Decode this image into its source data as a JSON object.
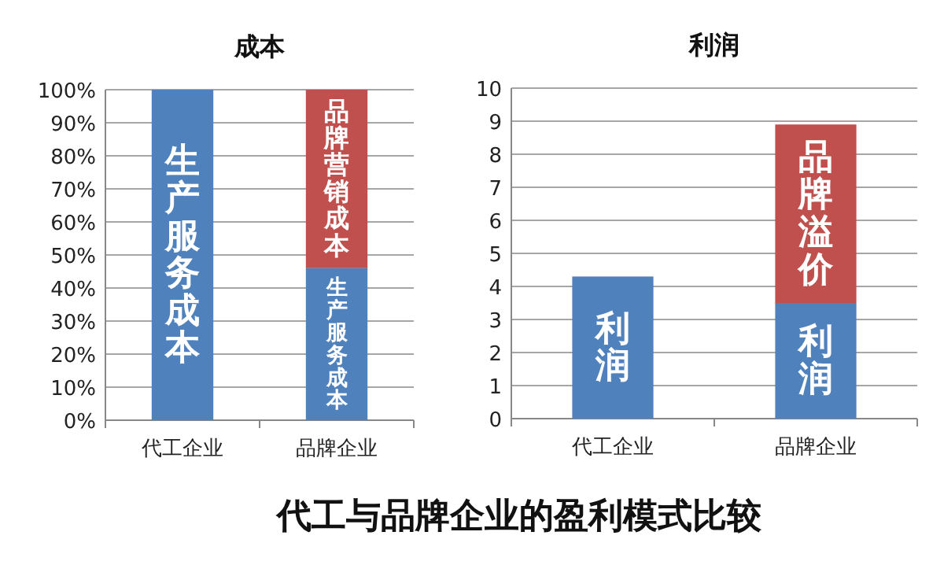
{
  "chart_data": [
    {
      "type": "bar",
      "title": "成本",
      "stacked": true,
      "grid": "y",
      "categories": [
        "代工企业",
        "品牌企业"
      ],
      "series": [
        {
          "name": "生产服务成本",
          "color": "#4f81bd",
          "values": [
            100,
            46
          ]
        },
        {
          "name": "品牌营销成本",
          "color": "#c0504d",
          "values": [
            null,
            54
          ]
        }
      ],
      "ylim": [
        0,
        100
      ],
      "yticks": [
        {
          "value": 0,
          "label": "0%"
        },
        {
          "value": 10,
          "label": "10%"
        },
        {
          "value": 20,
          "label": "20%"
        },
        {
          "value": 30,
          "label": "30%"
        },
        {
          "value": 40,
          "label": "40%"
        },
        {
          "value": 50,
          "label": "50%"
        },
        {
          "value": 60,
          "label": "60%"
        },
        {
          "value": 70,
          "label": "70%"
        },
        {
          "value": 80,
          "label": "80%"
        },
        {
          "value": 90,
          "label": "90%"
        },
        {
          "value": 100,
          "label": "100%"
        }
      ]
    },
    {
      "type": "bar",
      "title": "利润",
      "stacked": true,
      "grid": "y",
      "categories": [
        "代工企业",
        "品牌企业"
      ],
      "series": [
        {
          "name": "利润",
          "color": "#4f81bd",
          "values": [
            4.3,
            3.5
          ]
        },
        {
          "name": "品牌溢价",
          "color": "#c0504d",
          "values": [
            null,
            5.4
          ]
        }
      ],
      "ylim": [
        0,
        10
      ],
      "yticks": [
        0,
        1,
        2,
        3,
        4,
        5,
        6,
        7,
        8,
        9,
        10
      ],
      "annotations": [
        "代工与品牌企业的盈利模式比较"
      ]
    }
  ]
}
